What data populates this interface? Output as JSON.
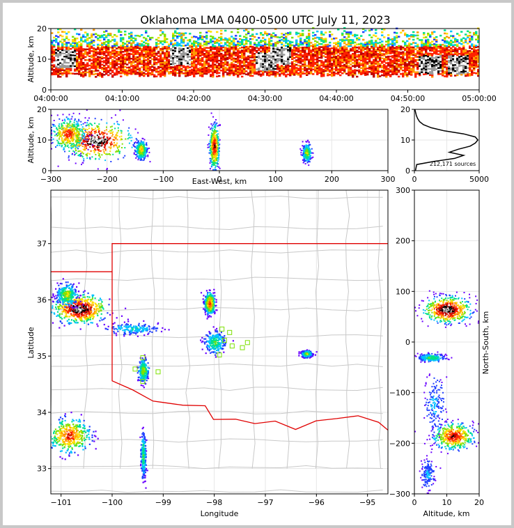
{
  "chart_data": {
    "type": "scatter",
    "title": "Oklahoma LMA 0400-0500 UTC July 11, 2023",
    "colors": {
      "frame": "#c8c8c8",
      "grid": "#e6e6e6",
      "state_border": "#e00000",
      "county_lines": "#c8c8c8",
      "station_marker": "#7ce000",
      "density_scale": [
        "#6a00ff",
        "#2040ff",
        "#00c0ff",
        "#00e08a",
        "#80e000",
        "#ffe000",
        "#ff9a00",
        "#ff2000",
        "#c00000",
        "#000000",
        "#9a9a9a",
        "#ffffff"
      ]
    },
    "panels": [
      {
        "id": "time_height",
        "xlabel": "",
        "ylabel": "Altitude, km",
        "xticks": [
          "04:00:00",
          "04:10:00",
          "04:20:00",
          "04:30:00",
          "04:40:00",
          "04:50:00",
          "05:00:00"
        ],
        "ylim": [
          0,
          20
        ],
        "yticks": [
          "0",
          "10",
          "20"
        ],
        "x_minutes": [
          0,
          60
        ],
        "band": {
          "base_km": 4,
          "core_bottom_km": 5,
          "core_top_km": 14,
          "top_km": 20
        },
        "hot_spots": [
          {
            "t_min": 2,
            "z_km": 10
          },
          {
            "t_min": 18,
            "z_km": 11
          },
          {
            "t_min": 30,
            "z_km": 9
          },
          {
            "t_min": 32,
            "z_km": 11
          },
          {
            "t_min": 53,
            "z_km": 8
          },
          {
            "t_min": 57,
            "z_km": 8
          }
        ]
      },
      {
        "id": "east_west",
        "xlabel": "East-West, km",
        "ylabel": "Altitude, km",
        "xlim": [
          -300,
          300
        ],
        "ylim": [
          0,
          20
        ],
        "xticks": [
          "−300",
          "−200",
          "−100",
          "0",
          "100",
          "200",
          "300"
        ],
        "yticks": [
          "0",
          "10",
          "20"
        ],
        "clusters": [
          {
            "x_km": -220,
            "z_km": 10,
            "spread_x_km": 60,
            "spread_z_km": 6,
            "level": 11
          },
          {
            "x_km": -270,
            "z_km": 12,
            "spread_x_km": 30,
            "spread_z_km": 5,
            "level": 8
          },
          {
            "x_km": -140,
            "z_km": 7,
            "spread_x_km": 10,
            "spread_z_km": 3,
            "level": 6
          },
          {
            "x_km": -10,
            "z_km": 8,
            "spread_x_km": 8,
            "spread_z_km": 7,
            "level": 9
          },
          {
            "x_km": 155,
            "z_km": 6,
            "spread_x_km": 8,
            "spread_z_km": 3,
            "level": 5
          }
        ]
      },
      {
        "id": "altitude_histogram",
        "xlabel": "",
        "ylabel": "",
        "xlim": [
          0,
          5000
        ],
        "ylim": [
          0,
          20
        ],
        "xticks": [
          "0",
          "5000"
        ],
        "yticks": [
          "0",
          "10",
          "20"
        ],
        "annotation": "212,171 sources",
        "profile": [
          {
            "z": 0,
            "n": 80
          },
          {
            "z": 2,
            "n": 180
          },
          {
            "z": 3,
            "n": 1500
          },
          {
            "z": 4,
            "n": 3100
          },
          {
            "z": 5,
            "n": 3800
          },
          {
            "z": 6,
            "n": 2700
          },
          {
            "z": 7,
            "n": 3400
          },
          {
            "z": 8,
            "n": 4300
          },
          {
            "z": 9,
            "n": 4700
          },
          {
            "z": 10,
            "n": 4900
          },
          {
            "z": 11,
            "n": 4700
          },
          {
            "z": 12,
            "n": 3800
          },
          {
            "z": 13,
            "n": 2300
          },
          {
            "z": 14,
            "n": 1300
          },
          {
            "z": 15,
            "n": 700
          },
          {
            "z": 16,
            "n": 400
          },
          {
            "z": 17,
            "n": 250
          },
          {
            "z": 18,
            "n": 150
          },
          {
            "z": 20,
            "n": 40
          }
        ]
      },
      {
        "id": "plan_view",
        "xlabel": "Longitude",
        "ylabel": "Latitude",
        "xlim": [
          -101.2,
          -94.6
        ],
        "ylim": [
          32.55,
          37.95
        ],
        "xticks": [
          "−101",
          "−100",
          "−99",
          "−98",
          "−97",
          "−96",
          "−95"
        ],
        "yticks": [
          "33",
          "34",
          "35",
          "36",
          "37"
        ],
        "clusters": [
          {
            "lon": -100.65,
            "lat": 35.85,
            "spread_lon": 0.5,
            "spread_lat": 0.25,
            "level": 11
          },
          {
            "lon": -100.9,
            "lat": 36.1,
            "spread_lon": 0.2,
            "spread_lat": 0.2,
            "level": 5
          },
          {
            "lon": -100.85,
            "lat": 33.6,
            "spread_lon": 0.4,
            "spread_lat": 0.3,
            "level": 8
          },
          {
            "lon": -99.4,
            "lat": 34.75,
            "spread_lon": 0.1,
            "spread_lat": 0.2,
            "level": 5
          },
          {
            "lon": -99.4,
            "lat": 33.25,
            "spread_lon": 0.05,
            "spread_lat": 0.4,
            "level": 4
          },
          {
            "lon": -98.1,
            "lat": 35.95,
            "spread_lon": 0.1,
            "spread_lat": 0.18,
            "level": 8
          },
          {
            "lon": -98.0,
            "lat": 35.25,
            "spread_lon": 0.2,
            "spread_lat": 0.2,
            "level": 4
          },
          {
            "lon": -96.2,
            "lat": 35.05,
            "spread_lon": 0.1,
            "spread_lat": 0.06,
            "level": 5
          },
          {
            "lon": -99.6,
            "lat": 35.5,
            "spread_lon": 0.5,
            "spread_lat": 0.1,
            "level": 3
          }
        ],
        "stations": [
          {
            "lon": -97.85,
            "lat": 35.48
          },
          {
            "lon": -97.7,
            "lat": 35.42
          },
          {
            "lon": -97.65,
            "lat": 35.18
          },
          {
            "lon": -97.45,
            "lat": 35.15
          },
          {
            "lon": -97.35,
            "lat": 35.24
          },
          {
            "lon": -97.9,
            "lat": 35.02
          },
          {
            "lon": -97.8,
            "lat": 35.28
          },
          {
            "lon": -99.4,
            "lat": 34.97
          },
          {
            "lon": -99.55,
            "lat": 34.77
          },
          {
            "lon": -99.1,
            "lat": 34.72
          },
          {
            "lon": -99.4,
            "lat": 34.55
          }
        ]
      },
      {
        "id": "north_south",
        "xlabel": "Altitude, km",
        "ylabel": "North-South, km",
        "xlim": [
          0,
          20
        ],
        "ylim": [
          -300,
          300
        ],
        "xticks": [
          "0",
          "10",
          "20"
        ],
        "yticks": [
          "−300",
          "−200",
          "−100",
          "0",
          "100",
          "200",
          "300"
        ],
        "clusters": [
          {
            "z_km": 10,
            "y_km": 65,
            "spread_z_km": 7,
            "spread_y_km": 25,
            "level": 11
          },
          {
            "z_km": 12,
            "y_km": -185,
            "spread_z_km": 6,
            "spread_y_km": 25,
            "level": 9
          },
          {
            "z_km": 5,
            "y_km": -30,
            "spread_z_km": 4,
            "spread_y_km": 8,
            "level": 4
          },
          {
            "z_km": 6,
            "y_km": -120,
            "spread_z_km": 3,
            "spread_y_km": 60,
            "level": 2
          },
          {
            "z_km": 4,
            "y_km": -260,
            "spread_z_km": 2,
            "spread_y_km": 30,
            "level": 2
          }
        ]
      }
    ]
  }
}
